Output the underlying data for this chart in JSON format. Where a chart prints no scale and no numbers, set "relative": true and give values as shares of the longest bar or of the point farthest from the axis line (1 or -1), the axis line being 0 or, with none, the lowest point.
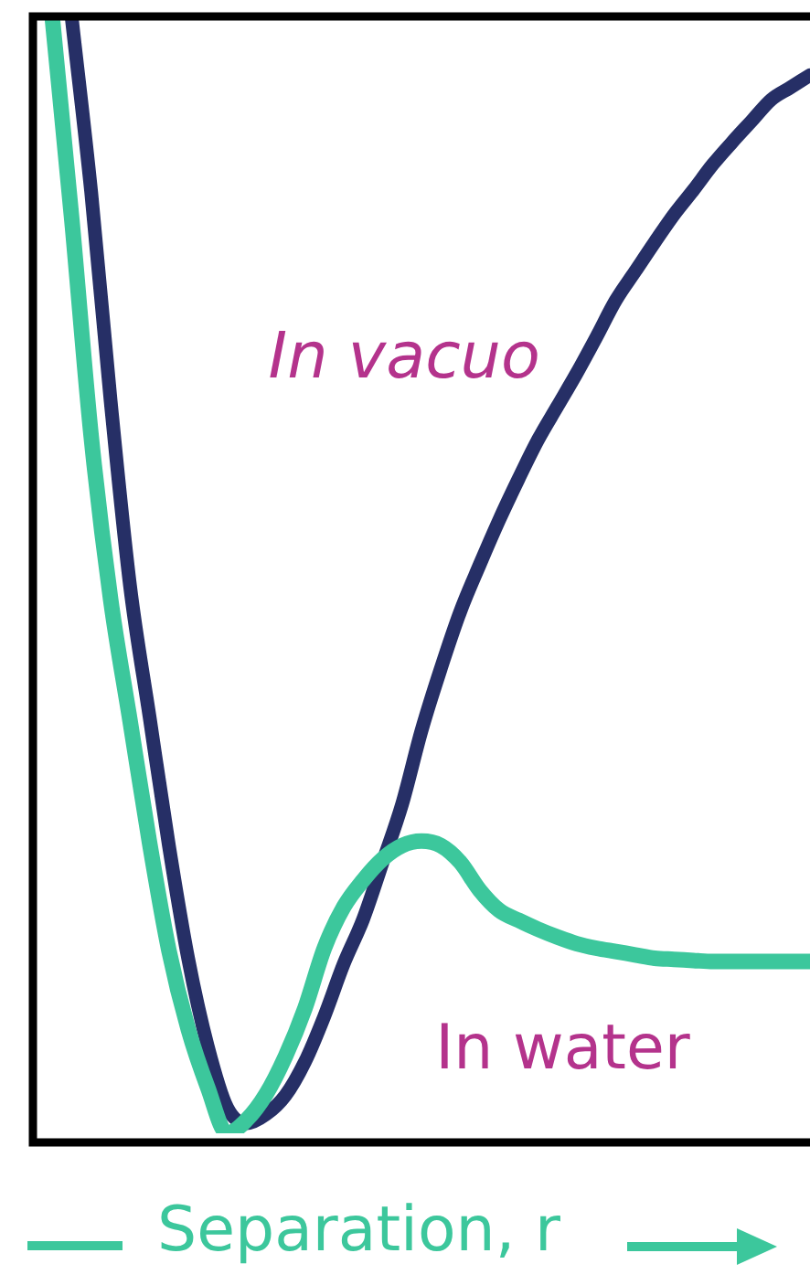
{
  "chart_data": {
    "type": "line",
    "xlabel": "Separation, r",
    "relative": true,
    "categories": [
      null,
      null,
      null,
      null,
      null,
      null,
      null,
      null,
      null,
      null,
      null,
      null,
      null,
      null,
      null,
      null,
      null,
      null,
      null,
      null,
      null,
      null,
      null,
      null,
      null,
      null,
      null,
      null,
      null,
      null,
      null,
      null,
      null,
      null,
      null,
      null,
      null,
      null,
      null,
      null,
      null
    ],
    "series": [
      {
        "name": "In vacuo",
        "color": "#262f66",
        "values": [
          null,
          null,
          1,
          0.844,
          0.657,
          0.491,
          0.374,
          0.258,
          0.156,
          0.078,
          0.023,
          0.009,
          0.017,
          0.034,
          0.064,
          0.105,
          0.152,
          0.192,
          0.243,
          0.295,
          0.361,
          0.417,
          0.468,
          0.51,
          0.55,
          0.587,
          0.622,
          0.652,
          0.682,
          0.714,
          0.747,
          0.773,
          0.799,
          0.824,
          0.846,
          0.869,
          0.889,
          0.908,
          0.927,
          0.938,
          0.949
        ]
      },
      {
        "name": "In water",
        "color": "#3cc79c",
        "values": [
          null,
          1,
          0.82,
          0.625,
          0.479,
          0.37,
          0.261,
          0.164,
          0.093,
          0.041,
          0,
          0.012,
          0.035,
          0.069,
          0.112,
          0.166,
          0.203,
          0.227,
          0.246,
          0.258,
          0.262,
          0.258,
          0.243,
          0.218,
          0.2,
          0.191,
          0.183,
          0.176,
          0.17,
          0.166,
          0.163,
          0.16,
          0.157,
          0.156,
          0.155,
          0.154,
          0.154,
          0.154,
          0.154,
          0.154,
          0.154
        ]
      }
    ]
  }
}
